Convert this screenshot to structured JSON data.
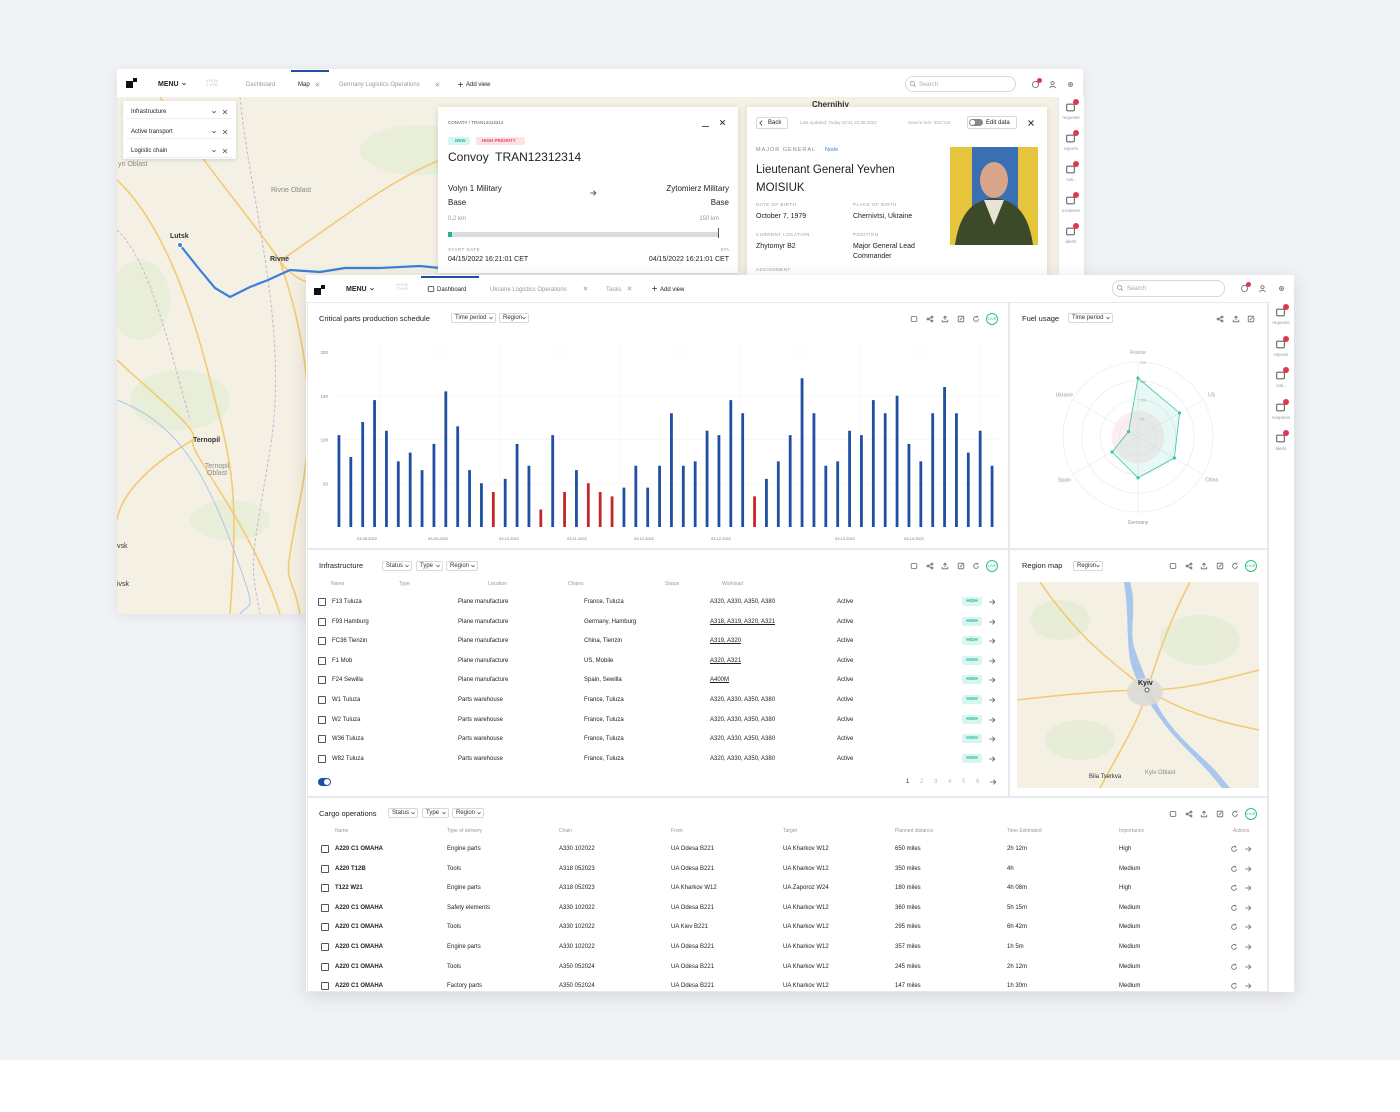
{
  "back_window": {
    "menu": "MENU",
    "view_type": "VIEW TYPE",
    "tabs": [
      "Dashboard",
      "Map",
      "Germany Logistics Operations"
    ],
    "add_view": "Add view",
    "search": "Search",
    "filters": [
      "Infrastructure",
      "Active transport",
      "Logistic chain"
    ],
    "map_labels": [
      "Lutsk",
      "Rivne",
      "Rivne Oblast",
      "Ternopil",
      "Ternopil Oblast",
      "Chernihiv",
      "yn Oblast",
      "vsk",
      "ivsk"
    ],
    "sidebar": [
      "requests",
      "reports",
      "noti..",
      "incidents",
      "alerts"
    ],
    "convoy": {
      "breadcrumb": "CONVOY / TRAN12312314",
      "tags": [
        "NEW",
        "HIGH PRIORITY"
      ],
      "title": "Convoy  TRAN12312314",
      "from": "Volyn 1 Military Base",
      "to": "Zytomierz Military Base",
      "from_distance": "0,2 km",
      "to_distance": "150 km",
      "start_label": "START DATE",
      "start": "04/15/2022 16:21:01 CET",
      "eta_label": "ETA",
      "eta": "04/15/2022 16:21:01 CET"
    },
    "person": {
      "back": "Back",
      "updated": "Last updated: Today 20:41 22.08.2022",
      "source": "Source hub: ID67142",
      "edit": "Edit data",
      "rank": "MAJOR GENERAL",
      "node": "Node",
      "name": "Lieutenant General Yevhen MOISIUK",
      "fields": [
        {
          "label": "DATE OF BIRTH",
          "value": "October 7, 1979"
        },
        {
          "label": "PLACE OF BIRTH",
          "value": "Chernivtsi, Ukraine"
        },
        {
          "label": "CURRENT LOCATION",
          "value": "Zhytomyr B2"
        },
        {
          "label": "POSITION",
          "value": "Major General Lead Commander"
        }
      ],
      "assignment": "ASSIGNMENT"
    }
  },
  "front_window": {
    "menu": "MENU",
    "view_type": "VIEW TYPE",
    "tabs": [
      "Dashboard",
      "Ukraine Logistics Operations",
      "Tasks"
    ],
    "add_view": "Add view",
    "search": "Search",
    "sidebar": [
      "requests",
      "reports",
      "noti..",
      "suspects",
      "alerts"
    ],
    "live": "LIVE",
    "chart_filters": [
      "Time period",
      "Region"
    ],
    "fuel_filters": [
      "Time period"
    ],
    "infrastructure": {
      "title": "Infrastructure",
      "filters": [
        "Status",
        "Type",
        "Region"
      ],
      "columns": [
        "Name",
        "Type",
        "Location",
        "Chains",
        "Status",
        "Workload"
      ],
      "rows": [
        [
          "F13 Tuluza",
          "Plane manufacture",
          "France, Tuluza",
          "A320, A330, A350, A380",
          "Active",
          "HIGH"
        ],
        [
          "F93 Hamburg",
          "Plane manufacture",
          "Germany, Hamburg",
          "A318, A319, A320, A321",
          "Active",
          "HIGH"
        ],
        [
          "FC36 Tienzin",
          "Plane manufacture",
          "China, Tienzin",
          "A319, A320",
          "Active",
          "HIGH"
        ],
        [
          "F1 Mob",
          "Plane manufacture",
          "US, Mobile",
          "A320, A321",
          "Active",
          "HIGH"
        ],
        [
          "F24 Sewilla",
          "Plane manufacture",
          "Spain, Sewilla",
          "A400M",
          "Active",
          "HIGH"
        ],
        [
          "W1 Tuluza",
          "Parts warehouse",
          "France, Tuluza",
          "A320, A330, A350, A380",
          "Active",
          "HIGH"
        ],
        [
          "W2 Tuluza",
          "Parts warehouse",
          "France, Tuluza",
          "A320, A330, A350, A380",
          "Active",
          "HIGH"
        ],
        [
          "W36 Tuluza",
          "Parts warehouse",
          "France, Tuluza",
          "A320, A330, A350, A380",
          "Active",
          "HIGH"
        ],
        [
          "W82 Tuluza",
          "Parts warehouse",
          "France, Tuluza",
          "A320, A330, A350, A380",
          "Active",
          "HIGH"
        ]
      ]
    },
    "pagination": [
      1,
      2,
      3,
      4,
      5,
      6
    ],
    "region_map": {
      "title": "Region map",
      "filters": [
        "Region"
      ],
      "labels": [
        "Kyiv",
        "Bila Tserkva",
        "Kyiv Oblast"
      ]
    },
    "cargo": {
      "title": "Cargo operations",
      "filters": [
        "Status",
        "Type",
        "Region"
      ],
      "columns": [
        "Name",
        "Type of delivery",
        "Chain",
        "From",
        "Target",
        "Planned distance",
        "Time Estimated",
        "Importance",
        "Actions"
      ],
      "rows": [
        [
          "A220 C1 OMAHA",
          "Engine parts",
          "A330 102022",
          "UA Odesa B221",
          "UA Kharkov W12",
          "650 miles",
          "2h 12m",
          "High"
        ],
        [
          "A220 T12B",
          "Tools",
          "A318 052023",
          "UA Odesa B221",
          "UA Kharkov W12",
          "350 miles",
          "4h",
          "Medium"
        ],
        [
          "T122 W21",
          "Engine parts",
          "A318 052023",
          "UA Kharkov W12",
          "UA Zaporoz W24",
          "180 miles",
          "4h 08m",
          "High"
        ],
        [
          "A220 C1 OMAHA",
          "Safety elements",
          "A330 102022",
          "UA Odesa B221",
          "UA Kharkov W12",
          "360 miles",
          "5h 15m",
          "Medium"
        ],
        [
          "A220 C1 OMAHA",
          "Tools",
          "A330 102022",
          "UA Kiev B221",
          "UA Kharkov W12",
          "295 miles",
          "6h 42m",
          "Medium"
        ],
        [
          "A220 C1 OMAHA",
          "Engine parts",
          "A330 102022",
          "UA Odesa B221",
          "UA Kharkov W12",
          "357 miles",
          "1h 5m",
          "Medium"
        ],
        [
          "A220 C1 OMAHA",
          "Tools",
          "A350 052024",
          "UA Odesa B221",
          "UA Kharkov W12",
          "245 miles",
          "2h 12m",
          "Medium"
        ],
        [
          "A220 C1 OMAHA",
          "Factory parts",
          "A350 052024",
          "UA Odesa B221",
          "UA Kharkov W12",
          "147 miles",
          "1h 30m",
          "Medium"
        ]
      ]
    }
  },
  "chart_data": [
    {
      "type": "bar",
      "title": "Critical parts production schedule",
      "categories": [
        null,
        null,
        null,
        null,
        null,
        null,
        null,
        null,
        null,
        null,
        null,
        null,
        null,
        null,
        null,
        null,
        null,
        null,
        null,
        null,
        null,
        null,
        null,
        null,
        null,
        null,
        null,
        null,
        null,
        null,
        null,
        null,
        null,
        null,
        null,
        null,
        null,
        null,
        null,
        null,
        null,
        null,
        null,
        null,
        null,
        null,
        null,
        null,
        null,
        null,
        null,
        null,
        null,
        null,
        null,
        null
      ],
      "values": [
        105,
        80,
        120,
        145,
        110,
        75,
        85,
        65,
        95,
        155,
        115,
        65,
        50,
        40,
        55,
        95,
        70,
        20,
        105,
        40,
        65,
        50,
        40,
        35,
        45,
        70,
        45,
        70,
        130,
        70,
        75,
        110,
        105,
        145,
        130,
        35,
        55,
        75,
        105,
        170,
        130,
        70,
        75,
        110,
        105,
        145,
        130,
        150,
        95,
        75,
        130,
        160,
        130,
        85,
        110,
        70
      ],
      "colors": [
        "#1f4fa3",
        "#1f4fa3",
        "#1f4fa3",
        "#1f4fa3",
        "#1f4fa3",
        "#1f4fa3",
        "#1f4fa3",
        "#1f4fa3",
        "#1f4fa3",
        "#1f4fa3",
        "#1f4fa3",
        "#1f4fa3",
        "#1f4fa3",
        "#c1272d",
        "#1f4fa3",
        "#1f4fa3",
        "#1f4fa3",
        "#c1272d",
        "#1f4fa3",
        "#c1272d",
        "#1f4fa3",
        "#c1272d",
        "#c1272d",
        "#c1272d",
        "#1f4fa3",
        "#1f4fa3",
        "#1f4fa3",
        "#1f4fa3",
        "#1f4fa3",
        "#1f4fa3",
        "#1f4fa3",
        "#1f4fa3",
        "#1f4fa3",
        "#1f4fa3",
        "#1f4fa3",
        "#c1272d",
        "#1f4fa3",
        "#1f4fa3",
        "#1f4fa3",
        "#1f4fa3",
        "#1f4fa3",
        "#1f4fa3",
        "#1f4fa3",
        "#1f4fa3",
        "#1f4fa3",
        "#1f4fa3",
        "#1f4fa3",
        "#1f4fa3",
        "#1f4fa3",
        "#1f4fa3",
        "#1f4fa3",
        "#1f4fa3",
        "#1f4fa3",
        "#1f4fa3",
        "#1f4fa3",
        "#1f4fa3"
      ],
      "x_group_labels": [
        "03.08.2022",
        "03.09.2022",
        "03.10.2022",
        "03.11.2022",
        "03.12.2022",
        "03.12.2022",
        "03.13.2022",
        "03.14.2022"
      ],
      "ylim": [
        0,
        200
      ],
      "yticks": [
        50,
        100,
        150,
        200
      ],
      "grid": true
    },
    {
      "type": "radar",
      "title": "Fuel usage",
      "categories": [
        "France",
        "US",
        "China",
        "Germany",
        "Spain",
        "Ukraine"
      ],
      "values": [
        157,
        128,
        112,
        109,
        80,
        29
      ],
      "color": "#3cc3a9",
      "rlim": [
        0,
        200
      ],
      "rticks": [
        50,
        100,
        150,
        200
      ]
    }
  ]
}
